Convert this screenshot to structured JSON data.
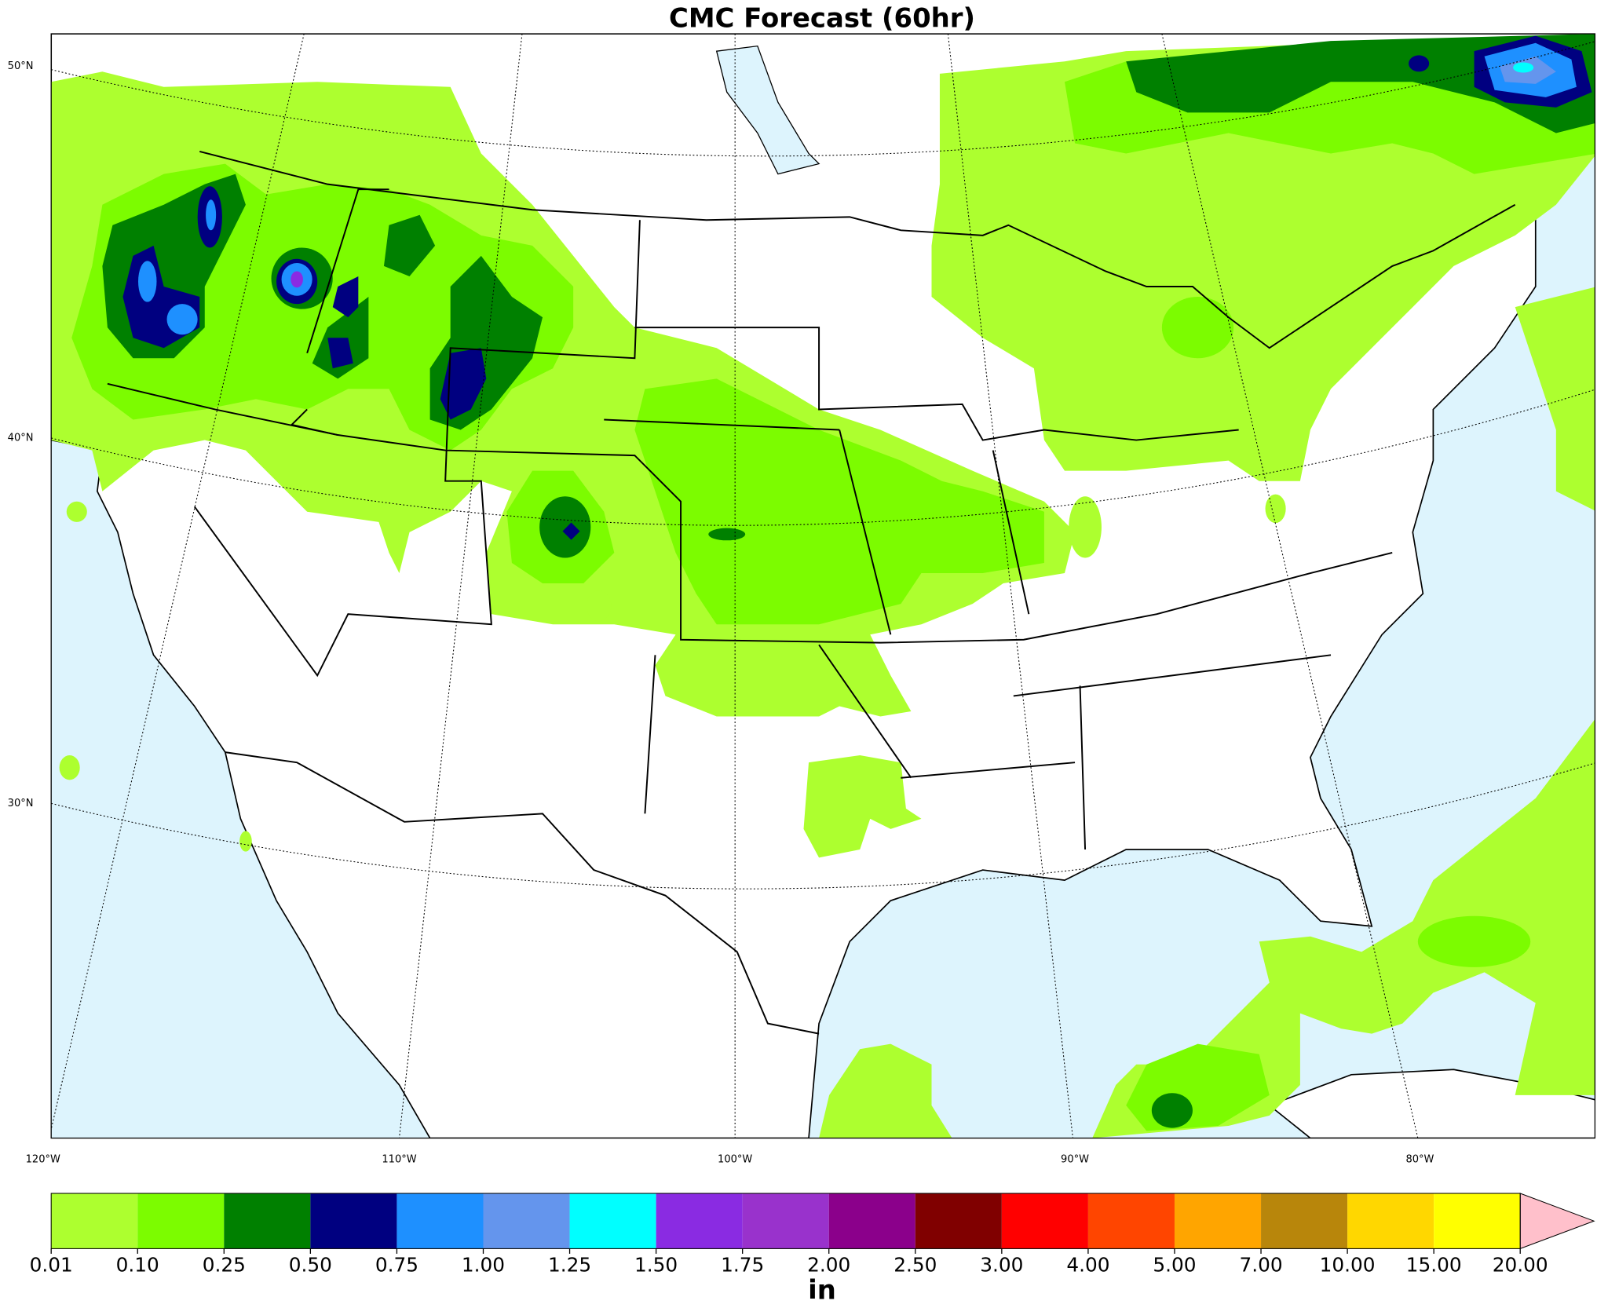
{
  "title": "CMC Forecast (60hr)",
  "map": {
    "lat_labels": [
      "50°N",
      "40°N",
      "30°N"
    ],
    "lon_labels": [
      "120°W",
      "110°W",
      "100°W",
      "90°W",
      "80°W"
    ]
  },
  "colorbar": {
    "ticks": [
      0.01,
      {
        "value": 0.1,
        "label": "0.10"
      },
      0.25,
      {
        "value": 0.5,
        "label": "0.50"
      },
      0.75,
      {
        "value": 1,
        "label": "1.00"
      },
      1.25,
      {
        "value": 1.5,
        "label": "1.50"
      },
      1.75,
      {
        "value": 2,
        "label": "2.00"
      },
      {
        "value": 2.5,
        "label": "2.50"
      },
      {
        "value": 3,
        "label": "3.00"
      },
      {
        "value": 4,
        "label": "4.00"
      },
      {
        "value": 5,
        "label": "5.00"
      },
      {
        "value": 7,
        "label": "7.00"
      },
      {
        "value": 10,
        "label": "10.00"
      },
      {
        "value": 15,
        "label": "15.00"
      },
      {
        "value": 20,
        "label": "20.00"
      }
    ],
    "colors": [
      "#adff2f",
      "#7cfc00",
      "#008000",
      "#000080",
      "#1e90ff",
      "#6495ed",
      "#00ffff",
      "#8a2be2",
      "#9932cc",
      "#8b008b",
      "#800000",
      "#ff0000",
      "#ff4500",
      "#ffa500",
      "#b8860b",
      "#ffd700",
      "#ffff00"
    ],
    "extend_color": "#ffc0cb",
    "label": "in"
  }
}
